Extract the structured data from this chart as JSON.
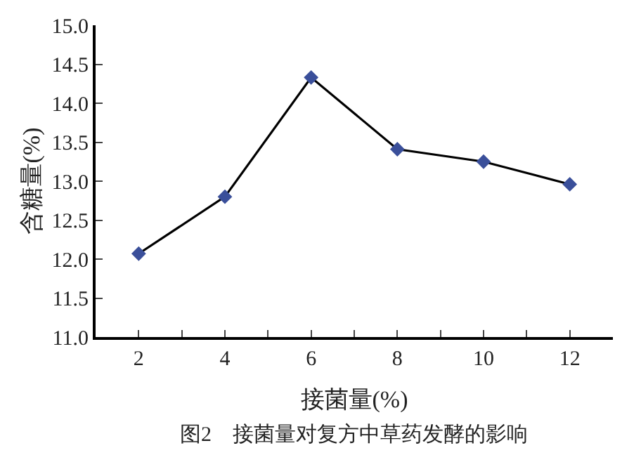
{
  "chart_data": {
    "type": "line",
    "xlabel": "接菌量(%)",
    "ylabel": "含糖量(%)",
    "x": [
      2,
      4,
      6,
      8,
      10,
      12
    ],
    "series": [
      {
        "color": "#3a4f9a",
        "values": [
          12.07,
          12.8,
          14.33,
          13.41,
          13.25,
          12.96
        ]
      }
    ],
    "xlim": [
      1,
      13
    ],
    "xticks": [
      {
        "value": 1,
        "label": null
      },
      2,
      {
        "value": 3,
        "label": null
      },
      4,
      {
        "value": 5,
        "label": null
      },
      6,
      {
        "value": 7,
        "label": null
      },
      8,
      {
        "value": 9,
        "label": null
      },
      10,
      {
        "value": 11,
        "label": null
      },
      12
    ],
    "ylim": [
      11.0,
      15.0
    ],
    "yticks": [
      {
        "value": 11,
        "label": "11.0"
      },
      {
        "value": 11.5,
        "label": "11.5"
      },
      {
        "value": 12,
        "label": "12.0"
      },
      {
        "value": 12.5,
        "label": "12.5"
      },
      {
        "value": 13,
        "label": "13.0"
      },
      {
        "value": 13.5,
        "label": "13.5"
      },
      {
        "value": 14,
        "label": "14.0"
      },
      {
        "value": 14.5,
        "label": "14.5"
      },
      {
        "value": 15,
        "label": "15.0"
      }
    ],
    "marker": "diamond",
    "line_style": "solid",
    "legend": false,
    "annotations": [
      "图2　接菌量对复方中草药发酵的影响"
    ]
  }
}
